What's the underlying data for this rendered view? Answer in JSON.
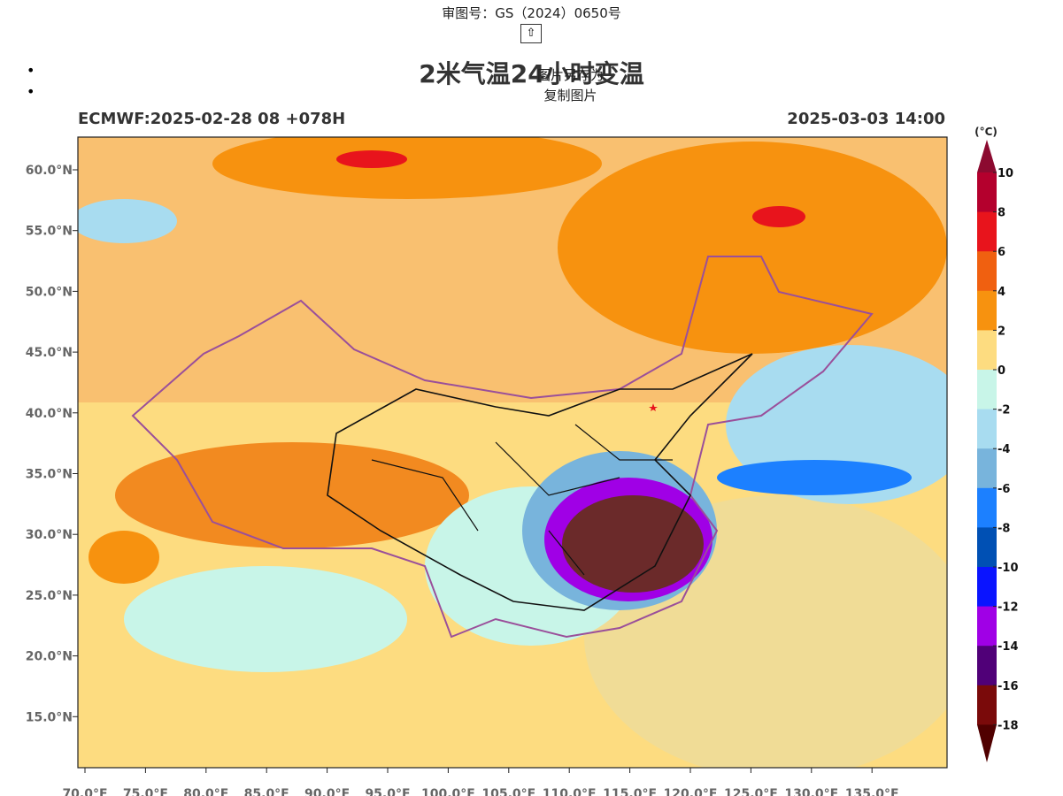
{
  "header": {
    "approval": "审图号：GS（2024）0650号",
    "up_button": "⇧",
    "title": "2米气温24小时变温",
    "menu": [
      "图片另存为",
      "复制图片"
    ]
  },
  "map": {
    "left_label": "ECMWF:2025-02-28 08 +078H",
    "right_label": "2025-03-03 14:00",
    "lat_labels": [
      "60.0°N",
      "55.0°N",
      "50.0°N",
      "45.0°N",
      "40.0°N",
      "35.0°N",
      "30.0°N",
      "25.0°N",
      "20.0°N",
      "15.0°N"
    ],
    "lon_labels": [
      "70.0°E",
      "75.0°E",
      "80.0°E",
      "85.0°E",
      "90.0°E",
      "95.0°E",
      "100.0°E",
      "105.0°E",
      "110.0°E",
      "115.0°E",
      "120.0°E",
      "125.0°E",
      "130.0°E",
      "135.0°E"
    ]
  },
  "colorbar": {
    "unit": "(°C)",
    "ticks": [
      10,
      8,
      6,
      4,
      2,
      0,
      -2,
      -4,
      -6,
      -8,
      -10,
      -12,
      -14,
      -16,
      -18
    ],
    "colors": [
      "#b4002d",
      "#e8141c",
      "#f06010",
      "#f7920f",
      "#fddc80",
      "#c8f5e8",
      "#a8dcf0",
      "#78b4dc",
      "#1c80ff",
      "#0050b4",
      "#0a14ff",
      "#a000e6",
      "#500078",
      "#7a0a0a"
    ],
    "over_color": "#8c0a30",
    "under_color": "#500000"
  }
}
